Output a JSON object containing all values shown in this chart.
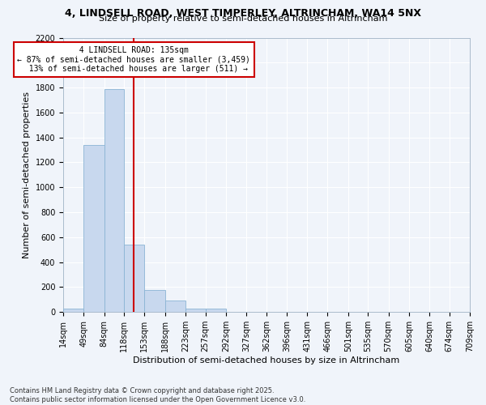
{
  "title1": "4, LINDSELL ROAD, WEST TIMPERLEY, ALTRINCHAM, WA14 5NX",
  "title2": "Size of property relative to semi-detached houses in Altrincham",
  "xlabel": "Distribution of semi-detached houses by size in Altrincham",
  "ylabel": "Number of semi-detached properties",
  "bin_edges": [
    14,
    49,
    84,
    118,
    153,
    188,
    223,
    257,
    292,
    327,
    362,
    396,
    431,
    466,
    501,
    535,
    570,
    605,
    640,
    674,
    709
  ],
  "bar_heights": [
    30,
    1340,
    1790,
    540,
    175,
    90,
    30,
    25,
    0,
    0,
    0,
    0,
    0,
    0,
    0,
    0,
    0,
    0,
    0,
    0
  ],
  "bar_color": "#c8d8ee",
  "bar_edgecolor": "#8ab4d4",
  "property_size": 135,
  "property_label": "4 LINDSELL ROAD: 135sqm",
  "pct_smaller": 87,
  "num_smaller": "3,459",
  "pct_larger": 13,
  "num_larger": 511,
  "vline_color": "#cc0000",
  "annotation_box_edgecolor": "#cc0000",
  "ylim": [
    0,
    2200
  ],
  "yticks": [
    0,
    200,
    400,
    600,
    800,
    1000,
    1200,
    1400,
    1600,
    1800,
    2000,
    2200
  ],
  "bg_color": "#f0f4fa",
  "plot_bg_color": "#f0f4fa",
  "grid_color": "#ffffff",
  "footer1": "Contains HM Land Registry data © Crown copyright and database right 2025.",
  "footer2": "Contains public sector information licensed under the Open Government Licence v3.0.",
  "title1_fontsize": 9,
  "title2_fontsize": 8,
  "ylabel_fontsize": 8,
  "xlabel_fontsize": 8,
  "tick_fontsize": 7,
  "footer_fontsize": 6
}
